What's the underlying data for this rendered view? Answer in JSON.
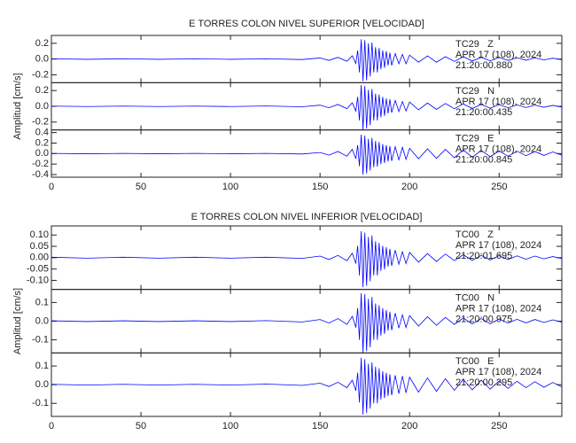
{
  "chart_data": [
    {
      "type": "line",
      "title": "E TORRES COLON NIVEL SUPERIOR [VELOCIDAD]",
      "ylabel": "Amplitud [cm/s]",
      "x": [
        0,
        20,
        40,
        60,
        80,
        100,
        120,
        140,
        150,
        155,
        160,
        165,
        168,
        170,
        171,
        172,
        173,
        174,
        175,
        176,
        177,
        178,
        179,
        180,
        181,
        182,
        183,
        184,
        185,
        186,
        187,
        188,
        189,
        190,
        192,
        194,
        196,
        198,
        200,
        205,
        210,
        215,
        220,
        225,
        230,
        235,
        240,
        245,
        250,
        255,
        260,
        265,
        270,
        275,
        280,
        285
      ],
      "xlim": [
        0,
        285
      ],
      "xticks": [
        0,
        50,
        100,
        150,
        200,
        250
      ],
      "panels": [
        {
          "station": "TC29   Z",
          "date": "APR 17 (108), 2024",
          "time": "21:20:00.880",
          "color": "#0000ff",
          "ylim": [
            -0.3,
            0.3
          ],
          "yticks": [
            -0.2,
            {
              "value": 0,
              "label": "0.0"
            },
            0.2
          ],
          "values": [
            0.003,
            -0.003,
            0.003,
            -0.003,
            0.003,
            -0.003,
            0.003,
            -0.006,
            0.014,
            -0.017,
            0.022,
            -0.028,
            0.042,
            -0.056,
            0.11,
            -0.17,
            0.25,
            -0.28,
            0.24,
            -0.27,
            0.2,
            -0.22,
            0.21,
            -0.17,
            0.15,
            -0.17,
            0.14,
            -0.13,
            0.11,
            -0.11,
            0.1,
            -0.08,
            0.08,
            -0.08,
            0.07,
            -0.06,
            0.06,
            -0.06,
            0.05,
            -0.04,
            0.04,
            -0.04,
            0.03,
            -0.03,
            0.03,
            -0.025,
            0.022,
            -0.022,
            0.02,
            -0.017,
            0.017,
            -0.014,
            0.014,
            -0.011,
            0.011,
            -0.008
          ]
        },
        {
          "station": "TC29   N",
          "date": "APR 17 (108), 2024",
          "time": "21:20:00.435",
          "color": "#0000ff",
          "ylim": [
            -0.3,
            0.3
          ],
          "yticks": [
            -0.2,
            {
              "value": 0,
              "label": "0.0"
            },
            0.2
          ],
          "values": [
            0.003,
            -0.003,
            0.003,
            -0.003,
            0.003,
            -0.003,
            0.004,
            -0.006,
            0.015,
            -0.018,
            0.024,
            -0.03,
            0.045,
            -0.06,
            0.12,
            -0.18,
            0.27,
            -0.3,
            0.26,
            -0.28,
            0.21,
            -0.24,
            0.22,
            -0.18,
            0.16,
            -0.18,
            0.15,
            -0.14,
            0.12,
            -0.12,
            0.1,
            -0.09,
            0.09,
            -0.08,
            0.075,
            -0.066,
            0.06,
            -0.06,
            0.054,
            -0.045,
            0.042,
            -0.039,
            0.036,
            -0.03,
            0.03,
            -0.027,
            0.024,
            -0.024,
            0.021,
            -0.018,
            0.018,
            -0.015,
            0.015,
            -0.012,
            0.012,
            -0.009
          ]
        },
        {
          "station": "TC29   E",
          "date": "APR 17 (108), 2024",
          "time": "21:20:00.845",
          "color": "#0000ff",
          "ylim": [
            -0.45,
            0.45
          ],
          "yticks": [
            -0.4,
            -0.2,
            {
              "value": 0,
              "label": "0.0"
            },
            0.2,
            0.4
          ],
          "values": [
            0.004,
            -0.004,
            0.004,
            -0.004,
            0.004,
            -0.004,
            0.004,
            -0.008,
            0.02,
            -0.03,
            0.04,
            -0.05,
            0.08,
            -0.1,
            0.16,
            -0.24,
            0.36,
            -0.4,
            0.34,
            -0.38,
            0.28,
            -0.32,
            0.3,
            -0.26,
            0.24,
            -0.25,
            0.22,
            -0.2,
            0.18,
            -0.18,
            0.16,
            -0.15,
            0.14,
            -0.14,
            0.13,
            -0.12,
            0.12,
            -0.11,
            0.1,
            -0.1,
            0.09,
            -0.09,
            0.08,
            -0.08,
            0.07,
            -0.07,
            0.06,
            -0.06,
            0.05,
            -0.05,
            0.045,
            -0.04,
            0.04,
            -0.035,
            0.03,
            -0.03
          ]
        }
      ]
    },
    {
      "type": "line",
      "title": "E TORRES COLON NIVEL INFERIOR [VELOCIDAD]",
      "ylabel": "Amplitud [cm/s]",
      "x": [
        0,
        20,
        40,
        60,
        80,
        100,
        120,
        140,
        150,
        155,
        160,
        165,
        168,
        170,
        171,
        172,
        173,
        174,
        175,
        176,
        177,
        178,
        179,
        180,
        181,
        182,
        183,
        184,
        185,
        186,
        187,
        188,
        189,
        190,
        192,
        194,
        196,
        198,
        200,
        205,
        210,
        215,
        220,
        225,
        230,
        235,
        240,
        245,
        250,
        255,
        260,
        265,
        270,
        275,
        280,
        285
      ],
      "xlim": [
        0,
        285
      ],
      "xticks": [
        0,
        50,
        100,
        150,
        200,
        250
      ],
      "panels": [
        {
          "station": "TC00   Z",
          "date": "APR 17 (108), 2024",
          "time": "21:20:01.695",
          "color": "#0000ff",
          "ylim": [
            -0.14,
            0.14
          ],
          "yticks": [
            {
              "value": -0.1,
              "label": "-0.10"
            },
            -0.05,
            {
              "value": 0,
              "label": "0.00"
            },
            0.05,
            {
              "value": 0.1,
              "label": "0.10"
            }
          ],
          "values": [
            0.002,
            -0.002,
            0.002,
            -0.002,
            0.002,
            -0.002,
            0.002,
            -0.003,
            0.007,
            -0.008,
            0.01,
            -0.013,
            0.02,
            -0.026,
            0.052,
            -0.078,
            0.117,
            -0.13,
            0.11,
            -0.124,
            0.091,
            -0.104,
            0.098,
            -0.078,
            0.072,
            -0.078,
            0.065,
            -0.058,
            0.052,
            -0.052,
            0.046,
            -0.039,
            0.039,
            -0.036,
            0.033,
            -0.029,
            0.026,
            -0.026,
            0.023,
            -0.02,
            0.018,
            -0.017,
            0.016,
            -0.013,
            0.013,
            -0.012,
            0.01,
            -0.01,
            0.009,
            -0.008,
            0.008,
            -0.007,
            0.007,
            -0.005,
            0.005,
            -0.004
          ]
        },
        {
          "station": "TC00   N",
          "date": "APR 17 (108), 2024",
          "time": "21:20:00.975",
          "color": "#0000ff",
          "ylim": [
            -0.17,
            0.17
          ],
          "yticks": [
            -0.1,
            {
              "value": 0,
              "label": "0.0"
            },
            0.1
          ],
          "values": [
            0.002,
            -0.002,
            0.002,
            -0.002,
            0.002,
            -0.002,
            0.003,
            -0.004,
            0.009,
            -0.01,
            0.014,
            -0.017,
            0.026,
            -0.034,
            0.07,
            -0.1,
            0.15,
            -0.17,
            0.145,
            -0.16,
            0.12,
            -0.14,
            0.13,
            -0.1,
            0.095,
            -0.1,
            0.085,
            -0.077,
            0.07,
            -0.068,
            0.06,
            -0.05,
            0.05,
            -0.048,
            0.043,
            -0.037,
            0.034,
            -0.034,
            0.03,
            -0.026,
            0.024,
            -0.022,
            0.02,
            -0.017,
            0.017,
            -0.015,
            0.014,
            -0.014,
            0.012,
            -0.01,
            0.01,
            -0.009,
            0.009,
            -0.007,
            0.007,
            -0.005
          ]
        },
        {
          "station": "TC00   E",
          "date": "APR 17 (108), 2024",
          "time": "21:20:00.295",
          "color": "#0000ff",
          "ylim": [
            -0.17,
            0.17
          ],
          "yticks": [
            -0.1,
            {
              "value": 0,
              "label": "0.0"
            },
            0.1
          ],
          "values": [
            0.002,
            -0.002,
            0.002,
            -0.002,
            0.002,
            -0.002,
            0.003,
            -0.004,
            0.008,
            -0.01,
            0.013,
            -0.016,
            0.024,
            -0.032,
            0.064,
            -0.096,
            0.144,
            -0.16,
            0.136,
            -0.152,
            0.112,
            -0.128,
            0.12,
            -0.1,
            0.096,
            -0.1,
            0.088,
            -0.08,
            0.072,
            -0.072,
            0.064,
            -0.06,
            0.056,
            -0.056,
            0.05,
            -0.048,
            0.046,
            -0.044,
            0.04,
            -0.04,
            0.036,
            -0.036,
            0.032,
            -0.03,
            0.028,
            -0.028,
            0.024,
            -0.024,
            0.02,
            -0.02,
            0.018,
            -0.016,
            0.016,
            -0.014,
            0.012,
            -0.012
          ]
        }
      ]
    }
  ]
}
